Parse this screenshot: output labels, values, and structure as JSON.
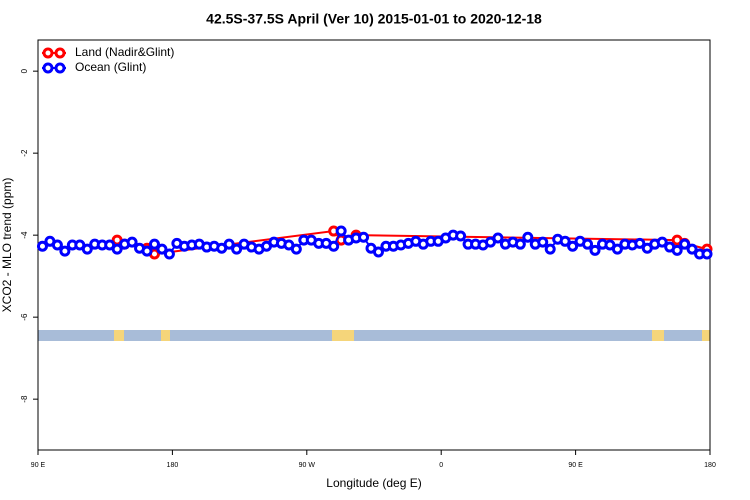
{
  "chart_data": {
    "type": "line",
    "title": "42.5S-37.5S April (Ver 10)   2015-01-01 to 2020-12-18",
    "x_label": "Longitude (deg E)",
    "y_label": "XCO2 - MLO trend (ppm)",
    "xlim": [
      90,
      540
    ],
    "xticks": [
      {
        "value": 90,
        "label": "90 E"
      },
      {
        "value": 180,
        "label": "180"
      },
      {
        "value": 270,
        "label": "90 W"
      },
      {
        "value": 360,
        "label": "0"
      },
      {
        "value": 450,
        "label": "90 E"
      },
      {
        "value": 540,
        "label": "180"
      }
    ],
    "ylim": [
      -9.24,
      0.76
    ],
    "yticks": [
      0,
      -2,
      -4,
      -6,
      -8
    ],
    "legend": "top-left",
    "series": [
      {
        "name": "Land (Nadir&Glint)",
        "color": "#ff0000",
        "x": [
          143,
          148,
          163,
          168,
          288,
          293,
          303,
          518,
          523,
          538
        ],
        "values": [
          -4.12,
          -4.22,
          -4.32,
          -4.46,
          -3.9,
          -4.12,
          -4.0,
          -4.12,
          -4.2,
          -4.34
        ]
      },
      {
        "name": "Ocean (Glint)",
        "color": "#0000ff",
        "x": [
          93,
          98,
          103,
          108,
          113,
          118,
          123,
          128,
          133,
          138,
          143,
          148,
          153,
          158,
          163,
          168,
          173,
          178,
          183,
          188,
          193,
          198,
          203,
          208,
          213,
          218,
          223,
          228,
          233,
          238,
          243,
          248,
          253,
          258,
          263,
          268,
          273,
          278,
          283,
          288,
          293,
          298,
          303,
          308,
          313,
          318,
          323,
          328,
          333,
          338,
          343,
          348,
          353,
          358,
          363,
          368,
          373,
          378,
          383,
          388,
          393,
          398,
          403,
          408,
          413,
          418,
          423,
          428,
          433,
          438,
          443,
          448,
          453,
          458,
          463,
          468,
          473,
          478,
          483,
          488,
          493,
          498,
          503,
          508,
          513,
          518,
          523,
          528,
          533,
          538
        ],
        "values": [
          -4.27,
          -4.15,
          -4.24,
          -4.39,
          -4.24,
          -4.24,
          -4.34,
          -4.22,
          -4.24,
          -4.24,
          -4.34,
          -4.22,
          -4.17,
          -4.32,
          -4.39,
          -4.22,
          -4.34,
          -4.46,
          -4.2,
          -4.27,
          -4.24,
          -4.22,
          -4.29,
          -4.27,
          -4.32,
          -4.22,
          -4.34,
          -4.22,
          -4.29,
          -4.34,
          -4.27,
          -4.17,
          -4.2,
          -4.24,
          -4.34,
          -4.12,
          -4.12,
          -4.2,
          -4.2,
          -4.27,
          -3.9,
          -4.12,
          -4.07,
          -4.05,
          -4.32,
          -4.41,
          -4.27,
          -4.27,
          -4.24,
          -4.2,
          -4.15,
          -4.22,
          -4.15,
          -4.15,
          -4.07,
          -4.0,
          -4.02,
          -4.22,
          -4.22,
          -4.24,
          -4.17,
          -4.07,
          -4.22,
          -4.17,
          -4.22,
          -4.05,
          -4.22,
          -4.17,
          -4.34,
          -4.1,
          -4.15,
          -4.27,
          -4.15,
          -4.22,
          -4.37,
          -4.22,
          -4.24,
          -4.34,
          -4.22,
          -4.24,
          -4.2,
          -4.32,
          -4.22,
          -4.17,
          -4.29,
          -4.37,
          -4.22,
          -4.34,
          -4.46,
          -4.46
        ]
      }
    ]
  }
}
